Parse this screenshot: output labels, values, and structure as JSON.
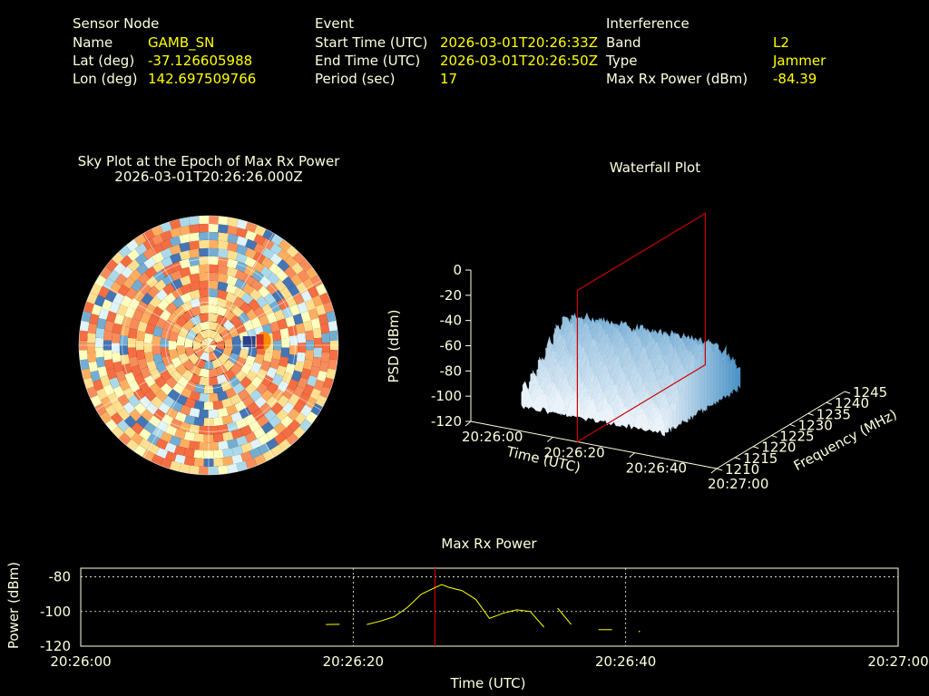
{
  "info": {
    "sensor": {
      "heading": "Sensor Node",
      "rows": [
        {
          "label": "Name",
          "value": "GAMB_SN"
        },
        {
          "label": "Lat (deg)",
          "value": "-37.126605988"
        },
        {
          "label": "Lon (deg)",
          "value": "142.697509766"
        }
      ]
    },
    "event": {
      "heading": "Event",
      "rows": [
        {
          "label": "Start Time (UTC)",
          "value": "2026-03-01T20:26:33Z"
        },
        {
          "label": "End Time (UTC)",
          "value": "2026-03-01T20:26:50Z"
        },
        {
          "label": "Period (sec)",
          "value": "17"
        }
      ]
    },
    "interference": {
      "heading": "Interference",
      "rows": [
        {
          "label": "Band",
          "value": "L2"
        },
        {
          "label": "Type",
          "value": "Jammer"
        },
        {
          "label": "Max Rx Power (dBm)",
          "value": "-84.39"
        }
      ]
    }
  },
  "colors": {
    "background": "#000000",
    "label_text": "#ffffe0",
    "value_text": "#ffff00",
    "marker": "#cc0000",
    "series": "#ffff00",
    "sky_high": "#f46d43",
    "sky_mid": "#fee090",
    "sky_low": "#4575b4",
    "waterfall": "#c8e1f0"
  },
  "chart_data": [
    {
      "type": "heatmap",
      "title": "Sky Plot at the Epoch of Max Rx Power",
      "subtitle": "2026-03-01T20:26:26.000Z",
      "projection": "polar",
      "rings": 3,
      "sectors": 12,
      "peak": {
        "azimuth_deg": 90,
        "elevation_deg": 55
      }
    },
    {
      "type": "area",
      "title": "Waterfall Plot",
      "xlabel": "Time (UTC)",
      "ylabel": "Frequency (MHz)",
      "zlabel": "PSD (dBm)",
      "x_ticks": [
        "20:26:00",
        "20:26:20",
        "20:26:40",
        "20:27:00"
      ],
      "y_ticks": [
        "1210",
        "1215",
        "1220",
        "1225",
        "1230",
        "1235",
        "1240",
        "1245"
      ],
      "z_ticks": [
        "0",
        "-20",
        "-40",
        "-60",
        "-80",
        "-100",
        "-120"
      ],
      "zlim": [
        -120,
        0
      ],
      "marker_time": "20:26:26"
    },
    {
      "type": "line",
      "title": "Max Rx Power",
      "xlabel": "Time (UTC)",
      "ylabel": "Power (dBm)",
      "x_ticks": [
        "20:26:00",
        "20:26:20",
        "20:26:40",
        "20:27:00"
      ],
      "y_ticks": [
        "-80",
        "-100",
        "-120"
      ],
      "xlim": [
        0,
        60
      ],
      "ylim": [
        -120,
        -75
      ],
      "grid": true,
      "marker_time": 26,
      "segments": [
        [
          [
            18,
            -107.5
          ],
          [
            19,
            -107.4
          ]
        ],
        [
          [
            21,
            -107.5
          ],
          [
            22,
            -105.5
          ],
          [
            23,
            -103
          ],
          [
            24,
            -97.5
          ],
          [
            25,
            -90
          ],
          [
            26,
            -86.2
          ],
          [
            26.5,
            -84.4
          ],
          [
            27,
            -86
          ],
          [
            28,
            -88
          ],
          [
            29,
            -93
          ],
          [
            30,
            -104
          ],
          [
            31,
            -101
          ],
          [
            32,
            -99
          ],
          [
            33,
            -100
          ],
          [
            34,
            -109
          ]
        ],
        [
          [
            35,
            -98
          ],
          [
            36,
            -107.5
          ]
        ],
        [
          [
            38,
            -110.5
          ],
          [
            39,
            -110.5
          ]
        ],
        [
          [
            41,
            -111.5
          ]
        ]
      ]
    }
  ]
}
